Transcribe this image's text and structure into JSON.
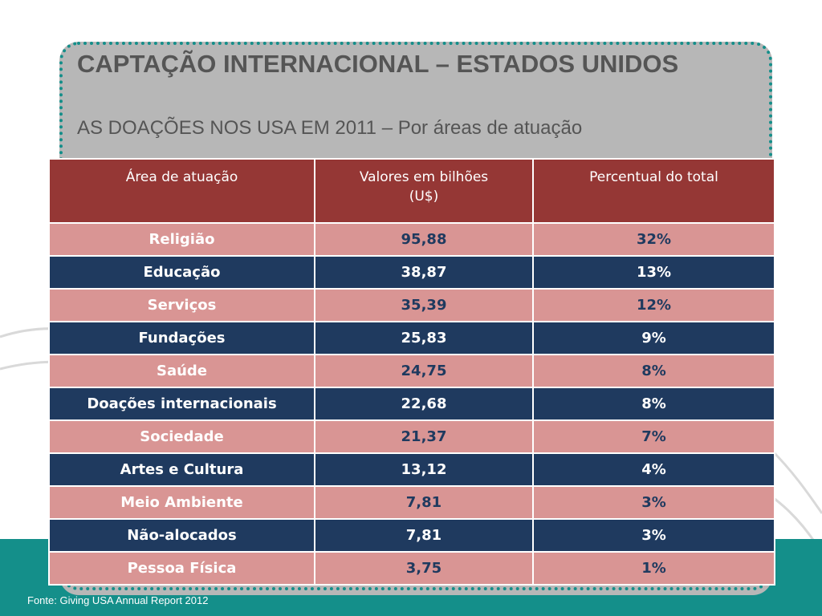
{
  "slide": {
    "title": "CAPTAÇÃO INTERNACIONAL – ESTADOS UNIDOS",
    "subtitle": "AS DOAÇÕES NOS USA EM 2011 – Por áreas de atuação",
    "source": "Fonte: Giving USA Annual Report 2012"
  },
  "colors": {
    "header_bg": "#953735",
    "pink_row": "#d99594",
    "navy_row": "#1f3a5f",
    "teal_accent": "#148f8a",
    "panel_gray": "#b7b7b7"
  },
  "table": {
    "headers": [
      "Área de atuação",
      "Valores em bilhões (U$)",
      "Percentual do total"
    ],
    "rows": [
      {
        "area": "Religião",
        "value": "95,88",
        "percent": "32%"
      },
      {
        "area": "Educação",
        "value": "38,87",
        "percent": "13%"
      },
      {
        "area": "Serviços",
        "value": "35,39",
        "percent": "12%"
      },
      {
        "area": "Fundações",
        "value": "25,83",
        "percent": "9%"
      },
      {
        "area": "Saúde",
        "value": "24,75",
        "percent": "8%"
      },
      {
        "area": "Doações internacionais",
        "value": "22,68",
        "percent": "8%"
      },
      {
        "area": "Sociedade",
        "value": "21,37",
        "percent": "7%"
      },
      {
        "area": "Artes e Cultura",
        "value": "13,12",
        "percent": "4%"
      },
      {
        "area": "Meio Ambiente",
        "value": "7,81",
        "percent": "3%"
      },
      {
        "area": "Não-alocados",
        "value": "7,81",
        "percent": "3%"
      },
      {
        "area": "Pessoa Física",
        "value": "3,75",
        "percent": "1%"
      }
    ]
  }
}
